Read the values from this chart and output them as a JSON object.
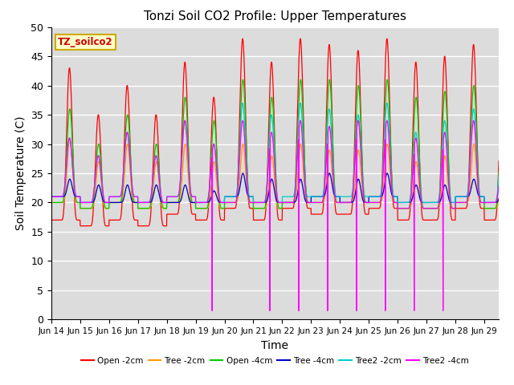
{
  "title": "Tonzi Soil CO2 Profile: Upper Temperatures",
  "xlabel": "Time",
  "ylabel": "Soil Temperature (C)",
  "watermark": "TZ_soilco2",
  "ylim": [
    0,
    50
  ],
  "background_color": "#dcdcdc",
  "series_names": [
    "Open -2cm",
    "Tree -2cm",
    "Open -4cm",
    "Tree -4cm",
    "Tree2 -2cm",
    "Tree2 -4cm"
  ],
  "series_colors": [
    "#ff0000",
    "#ff9900",
    "#00cc00",
    "#0000cc",
    "#00cccc",
    "#ff00ff"
  ],
  "x_tick_labels": [
    "Jun 14",
    "Jun 15",
    "Jun 16",
    "Jun 17",
    "Jun 18",
    "Jun 19",
    "Jun 20",
    "Jun 21",
    "Jun 22",
    "Jun 23",
    "Jun 24",
    "Jun 25",
    "Jun 26",
    "Jun 27",
    "Jun 28",
    "Jun 29"
  ],
  "num_days": 16,
  "points_per_day": 144
}
